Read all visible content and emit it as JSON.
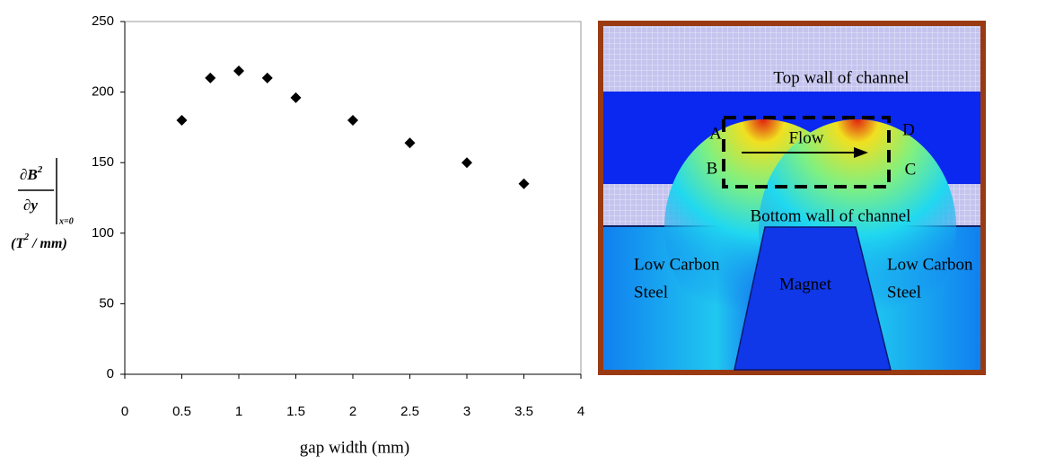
{
  "chart_data": {
    "type": "scatter",
    "xlabel": "gap width (mm)",
    "ylabel": {
      "numerator": "∂B",
      "numerator_power": "2",
      "denominator": "∂y",
      "evaluated_at": "x=0",
      "unit": "(T",
      "unit_power": "2",
      "unit_rest": " / mm)"
    },
    "x": [
      0.5,
      0.75,
      1,
      1.25,
      1.5,
      2,
      2.5,
      3,
      3.5
    ],
    "values": [
      180,
      210,
      215,
      210,
      196,
      180,
      164,
      150,
      135
    ],
    "color": "#000000",
    "xlim": [
      0,
      4
    ],
    "xticks": [
      0,
      0.5,
      1,
      1.5,
      2,
      2.5,
      3,
      3.5,
      4
    ],
    "ylim": [
      0,
      250
    ],
    "yticks": [
      0,
      50,
      100,
      150,
      200,
      250
    ],
    "grid": false
  },
  "figure": {
    "top_wall": "Top wall of channel",
    "bottom_wall": "Bottom wall of channel",
    "corners": [
      "A",
      "B",
      "C",
      "D"
    ],
    "flow": "Flow",
    "magnet": "Magnet",
    "left_material": [
      "Low Carbon",
      "Steel"
    ],
    "right_material": [
      "Low Carbon",
      "Steel"
    ]
  }
}
